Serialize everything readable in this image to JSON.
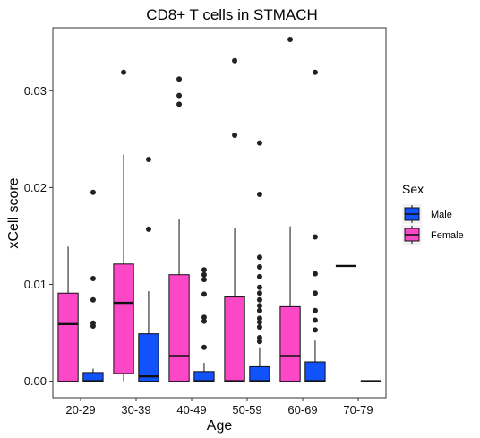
{
  "chart_data": {
    "type": "boxplot",
    "title": "CD8+ T cells in STMACH",
    "xlabel": "Age",
    "ylabel": "xCell score",
    "categories": [
      "20-29",
      "30-39",
      "40-49",
      "50-59",
      "60-69",
      "70-79"
    ],
    "y_ticks": [
      "0.00",
      "0.01",
      "0.02",
      "0.03"
    ],
    "y_tick_values": [
      0,
      0.01,
      0.02,
      0.03
    ],
    "ylim": [
      -0.0017,
      0.0365
    ],
    "grid": false,
    "legend": {
      "title": "Sex",
      "position": "right",
      "entries": [
        {
          "name": "Male",
          "color": "#1252fb"
        },
        {
          "name": "Female",
          "color": "#fc47c6"
        }
      ]
    },
    "series": [
      {
        "name": "Female",
        "color": "#fc47c6",
        "boxes": [
          {
            "category": "20-29",
            "min": 0.0,
            "q1": 0.0,
            "median": 0.0059,
            "q3": 0.0091,
            "max": 0.0139,
            "outliers": []
          },
          {
            "category": "30-39",
            "min": 0.0,
            "q1": 0.0008,
            "median": 0.0081,
            "q3": 0.0121,
            "max": 0.0234,
            "outliers": [
              0.0319
            ]
          },
          {
            "category": "40-49",
            "min": 0.0,
            "q1": 0.0,
            "median": 0.0026,
            "q3": 0.011,
            "max": 0.0167,
            "outliers": [
              0.0286,
              0.0295,
              0.0312
            ]
          },
          {
            "category": "50-59",
            "min": 0.0,
            "q1": 0.0,
            "median": 0.0,
            "q3": 0.0087,
            "max": 0.0158,
            "outliers": [
              0.0254,
              0.0331
            ]
          },
          {
            "category": "60-69",
            "min": 0.0,
            "q1": 0.0,
            "median": 0.0026,
            "q3": 0.0077,
            "max": 0.016,
            "outliers": [
              0.0353
            ]
          },
          {
            "category": "70-79",
            "min": 0.0119,
            "q1": 0.0119,
            "median": 0.0119,
            "q3": 0.0119,
            "max": 0.0119,
            "outliers": []
          }
        ]
      },
      {
        "name": "Male",
        "color": "#1252fb",
        "boxes": [
          {
            "category": "20-29",
            "min": 0.0,
            "q1": 0.0,
            "median": 0.0,
            "q3": 0.0009,
            "max": 0.0013,
            "outliers": [
              0.0057,
              0.006,
              0.0084,
              0.0106,
              0.0195
            ]
          },
          {
            "category": "30-39",
            "min": 0.0,
            "q1": 0.0,
            "median": 0.0005,
            "q3": 0.0049,
            "max": 0.0093,
            "outliers": [
              0.0157,
              0.0229
            ]
          },
          {
            "category": "40-49",
            "min": 0.0,
            "q1": 0.0,
            "median": 0.0,
            "q3": 0.001,
            "max": 0.0019,
            "outliers": [
              0.0035,
              0.0062,
              0.0066,
              0.009,
              0.0105,
              0.011,
              0.0115
            ]
          },
          {
            "category": "50-59",
            "min": 0.0,
            "q1": 0.0,
            "median": 0.0,
            "q3": 0.0015,
            "max": 0.0035,
            "outliers": [
              0.0041,
              0.0045,
              0.0056,
              0.0061,
              0.0065,
              0.0073,
              0.0078,
              0.0084,
              0.0091,
              0.0097,
              0.0108,
              0.0118,
              0.0128,
              0.0193,
              0.0246
            ]
          },
          {
            "category": "60-69",
            "min": 0.0,
            "q1": 0.0,
            "median": 0.0,
            "q3": 0.002,
            "max": 0.0042,
            "outliers": [
              0.0053,
              0.0063,
              0.0073,
              0.0091,
              0.0111,
              0.0149,
              0.0319
            ]
          },
          {
            "category": "70-79",
            "min": 0.0,
            "q1": 0.0,
            "median": 0.0,
            "q3": 0.0,
            "max": 0.0,
            "outliers": []
          }
        ]
      }
    ]
  }
}
